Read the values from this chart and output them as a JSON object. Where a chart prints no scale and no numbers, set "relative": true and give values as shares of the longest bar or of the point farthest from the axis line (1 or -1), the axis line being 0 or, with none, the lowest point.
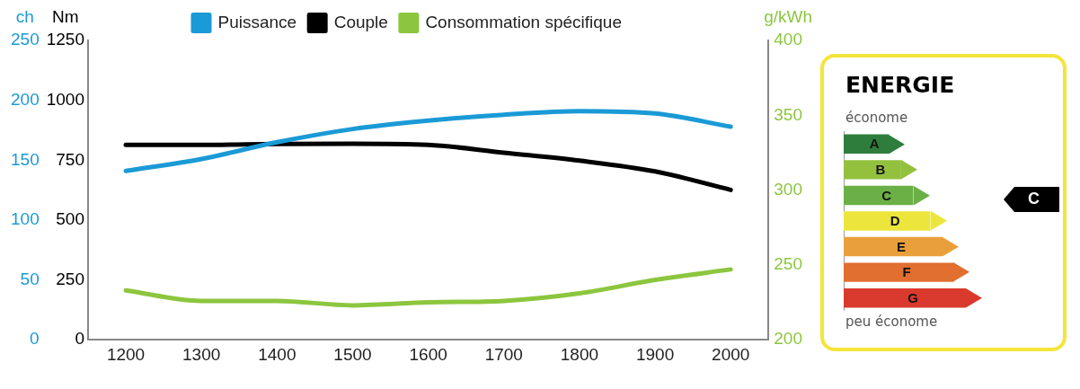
{
  "chart_data": [
    {
      "type": "line",
      "x": [
        1200,
        1300,
        1400,
        1500,
        1600,
        1700,
        1800,
        1900,
        2000
      ],
      "xlim": [
        1150,
        2050
      ],
      "xticks": [
        1200,
        1300,
        1400,
        1500,
        1600,
        1700,
        1800,
        1900,
        2000
      ],
      "ylabel": "ch",
      "ylim": [
        0,
        250
      ],
      "yticks": [
        0,
        50,
        100,
        150,
        200,
        250
      ],
      "y2label": "Nm",
      "y2lim": [
        0,
        1250
      ],
      "y2ticks": [
        0,
        250,
        500,
        750,
        1000,
        1250
      ],
      "y3label": "g/kWh",
      "y3lim": [
        200,
        400
      ],
      "y3ticks": [
        200,
        250,
        300,
        350,
        400
      ],
      "legend": "top",
      "grid": false,
      "series": [
        {
          "name": "Puissance",
          "color": "#1a9ad6",
          "values": [
            141,
            151,
            165,
            176,
            183,
            188,
            191,
            189,
            178
          ]
        },
        {
          "name": "Couple",
          "color": "#000000",
          "axis": "y2",
          "values": [
            814,
            814,
            818,
            819,
            814,
            781,
            748,
            703,
            626
          ]
        },
        {
          "name": "Consommation spécifique",
          "color": "#8cc63e",
          "axis": "y3",
          "values": [
            233,
            226,
            226,
            223,
            225,
            226,
            231,
            240,
            247
          ]
        }
      ]
    },
    {
      "type": "bar",
      "orientation": "horizontal",
      "relative": true,
      "title": "ENERGIE",
      "categories": [
        "A",
        "B",
        "C",
        "D",
        "E",
        "F",
        "G"
      ],
      "values": [
        0.37,
        0.47,
        0.57,
        0.71,
        0.81,
        0.9,
        1
      ],
      "colors": [
        "#2f7d3c",
        "#93c13e",
        "#6bb046",
        "#ece63c",
        "#e9a03c",
        "#e06f30",
        "#d93a2d"
      ],
      "annotations": [
        "économe",
        "C",
        "peu économe"
      ]
    }
  ]
}
